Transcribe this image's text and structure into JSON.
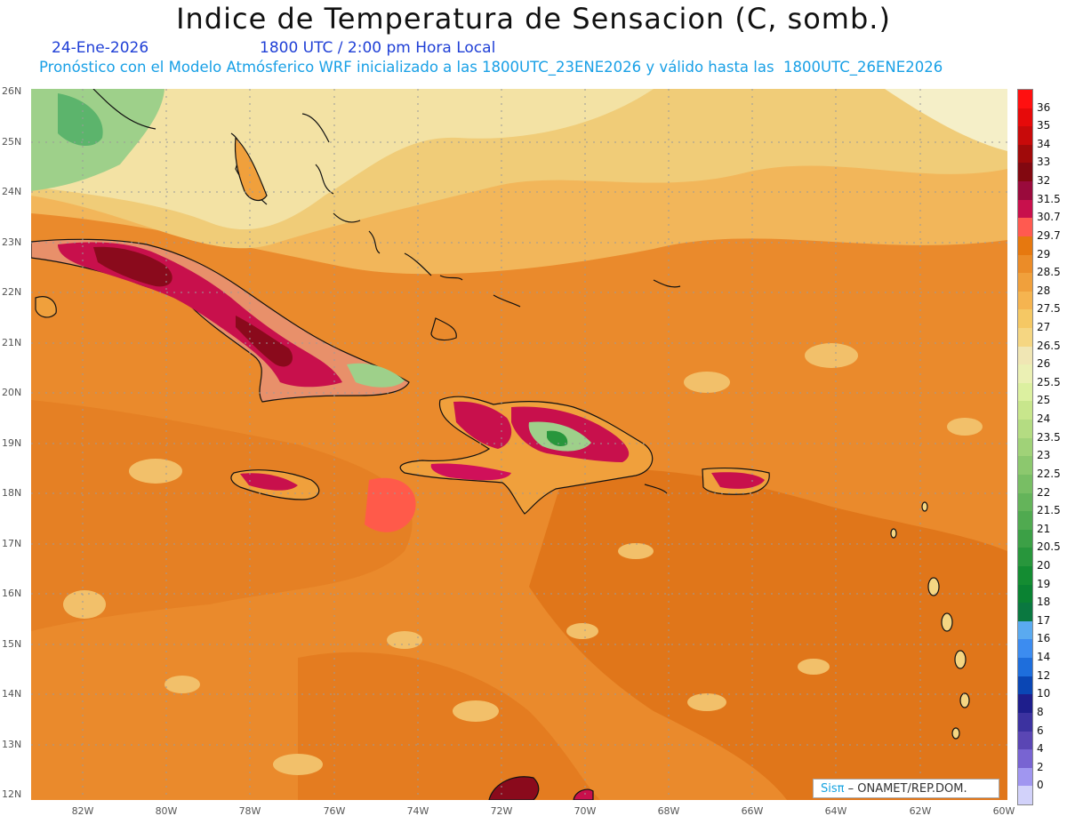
{
  "header": {
    "title": "Indice de Temperatura de Sensacion (C, somb.)",
    "date": "24-Ene-2026",
    "time": "1800 UTC / 2:00 pm Hora Local",
    "model_line": "Pronóstico con el Modelo Atmósferico WRF inicializado a las 1800UTC_23ENE2026 y válido hasta las  1800UTC_26ENE2026"
  },
  "axes": {
    "lat_labels": [
      "26N",
      "25N",
      "24N",
      "23N",
      "22N",
      "21N",
      "20N",
      "19N",
      "18N",
      "17N",
      "16N",
      "15N",
      "14N",
      "13N",
      "12N"
    ],
    "lon_labels": [
      "82W",
      "80W",
      "78W",
      "76W",
      "74W",
      "72W",
      "70W",
      "68W",
      "66W",
      "64W",
      "62W",
      "60W"
    ]
  },
  "colorbar": {
    "labels": [
      "36",
      "35",
      "34",
      "33",
      "32",
      "31.5",
      "30.7",
      "29.7",
      "29",
      "28.5",
      "28",
      "27.5",
      "27",
      "26.5",
      "26",
      "25.5",
      "25",
      "24",
      "23.5",
      "23",
      "22.5",
      "22",
      "21.5",
      "21",
      "20.5",
      "20",
      "19",
      "18",
      "17",
      "16",
      "14",
      "12",
      "10",
      "8",
      "6",
      "4",
      "2",
      "0"
    ],
    "colors": [
      "#ff1010",
      "#e60a0a",
      "#c80a0a",
      "#a00a0a",
      "#820810",
      "#9a0a3c",
      "#c8104c",
      "#ff5a50",
      "#e6780f",
      "#eb8c28",
      "#f0a03c",
      "#f5b450",
      "#f5c864",
      "#f5d682",
      "#f0e6b4",
      "#ebf0b4",
      "#dcf0a0",
      "#c8e68c",
      "#b4dc82",
      "#a0d278",
      "#8cc86e",
      "#78be64",
      "#64b45a",
      "#50aa50",
      "#3ca046",
      "#28963c",
      "#148c32",
      "#0a8232",
      "#0a7840",
      "#5aaaf0",
      "#3c8cf0",
      "#1e6edc",
      "#0a46b4",
      "#1e1e8c",
      "#3c32a0",
      "#5a46b4",
      "#7864d2",
      "#a096f0",
      "#d2d2fa"
    ]
  },
  "credit": {
    "sis": "Sisπ",
    "org": "– ONAMET/REP.DOM."
  },
  "palette": {
    "base_orange": "#ea8a2c",
    "dark_orange": "#e0761a",
    "light_orange": "#f2b65a",
    "pale": "#f3e2a4",
    "very_pale": "#f5efc8",
    "green": "#6cc07a",
    "red": "#ff5a4a",
    "magenta": "#d0105a",
    "maroon": "#8a0a1c",
    "coast": "#111111"
  }
}
